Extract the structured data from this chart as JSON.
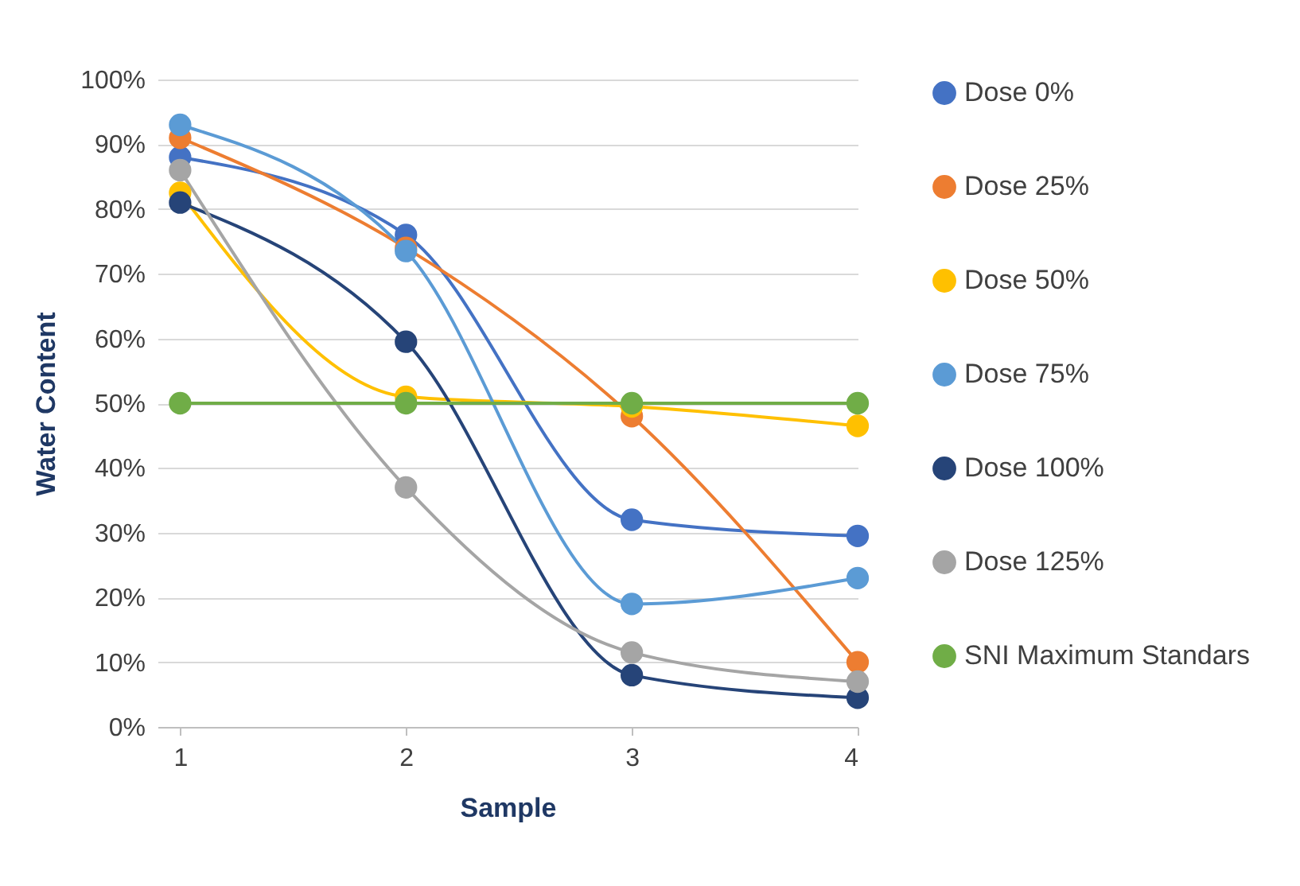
{
  "chart_data": {
    "type": "line",
    "xlabel": "Sample",
    "ylabel": "Water Content",
    "x": [
      1,
      2,
      3,
      4
    ],
    "xlim": [
      0.9,
      4
    ],
    "xticks": [
      1,
      2,
      3,
      4
    ],
    "ylim": [
      0,
      100
    ],
    "yticks": [
      {
        "value": 0,
        "label": "0%"
      },
      {
        "value": 10,
        "label": "10%"
      },
      {
        "value": 20,
        "label": "20%"
      },
      {
        "value": 30,
        "label": "30%"
      },
      {
        "value": 40,
        "label": "40%"
      },
      {
        "value": 50,
        "label": "50%"
      },
      {
        "value": 60,
        "label": "60%"
      },
      {
        "value": 70,
        "label": "70%"
      },
      {
        "value": 80,
        "label": "80%"
      },
      {
        "value": 90,
        "label": "90%"
      },
      {
        "value": 100,
        "label": "100%"
      }
    ],
    "grid": "y",
    "legend": "right",
    "marker": "circle",
    "line_style": "solid",
    "series": [
      {
        "name": "Dose 0%",
        "color": "#4472c4",
        "values": [
          88,
          76,
          32,
          29.5
        ]
      },
      {
        "name": "Dose 25%",
        "color": "#ed7d31",
        "values": [
          91,
          74,
          48,
          10
        ]
      },
      {
        "name": "Dose 50%",
        "color": "#ffc000",
        "values": [
          82.5,
          51,
          49.5,
          46.5
        ]
      },
      {
        "name": "Dose 75%",
        "color": "#5b9bd5",
        "values": [
          93,
          73.5,
          19,
          23
        ]
      },
      {
        "name": "Dose 100%",
        "color": "#264478",
        "values": [
          81,
          59.5,
          8,
          4.5
        ]
      },
      {
        "name": "Dose 125%",
        "color": "#a5a5a5",
        "values": [
          86,
          37,
          11.5,
          7
        ]
      },
      {
        "name": "SNI Maximum Standars",
        "color": "#70ad47",
        "values": [
          50,
          50,
          50,
          50
        ]
      }
    ]
  }
}
